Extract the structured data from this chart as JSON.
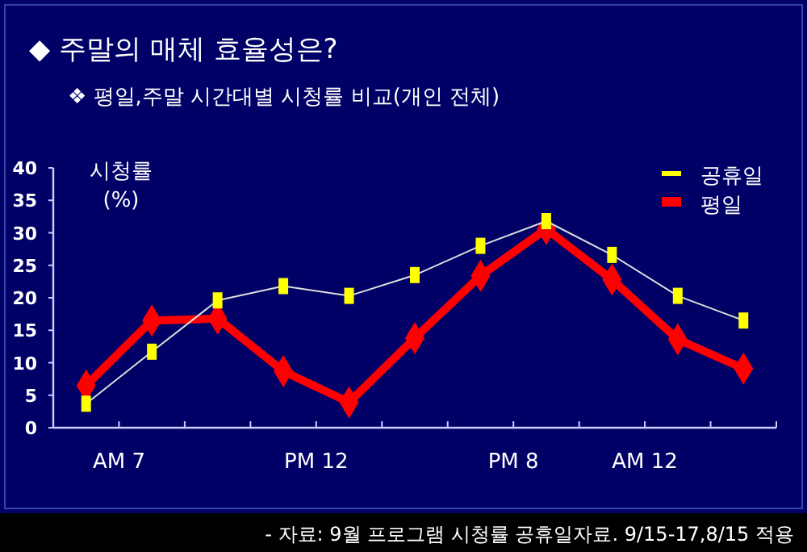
{
  "chart_data": {
    "type": "line",
    "title": "◆ 주말의 매체 효율성은?",
    "subtitle": "❖ 평일,주말 시간대별 시청률 비교(개인 전체)",
    "ylabel": "시청률\n(%)",
    "categories": [
      null,
      null,
      null,
      null,
      null,
      null,
      null,
      null,
      null,
      null,
      null
    ],
    "ylim": [
      0,
      40
    ],
    "yticks": [
      0,
      5,
      10,
      15,
      20,
      25,
      30,
      35,
      40
    ],
    "grid": false,
    "legend": "top right",
    "series": [
      {
        "name": "공휴일",
        "color": "#ffff00",
        "marker": "square",
        "values": [
          3.7,
          11.7,
          19.6,
          21.8,
          20.3,
          23.5,
          28,
          31.8,
          26.6,
          20.3,
          16.5
        ]
      },
      {
        "name": "평일",
        "color": "#ff0000",
        "marker": "diamond",
        "values": [
          6.5,
          16.5,
          16.8,
          8.7,
          3.9,
          13.8,
          23.4,
          30.6,
          22.8,
          13.6,
          9.1
        ]
      }
    ],
    "annotations": [
      "AM 7",
      "PM 12",
      "PM 8",
      "AM 12",
      "- 자료: 9월 프로그램 시청률 공휴일자료. 9/15-17,8/15 적용"
    ]
  }
}
